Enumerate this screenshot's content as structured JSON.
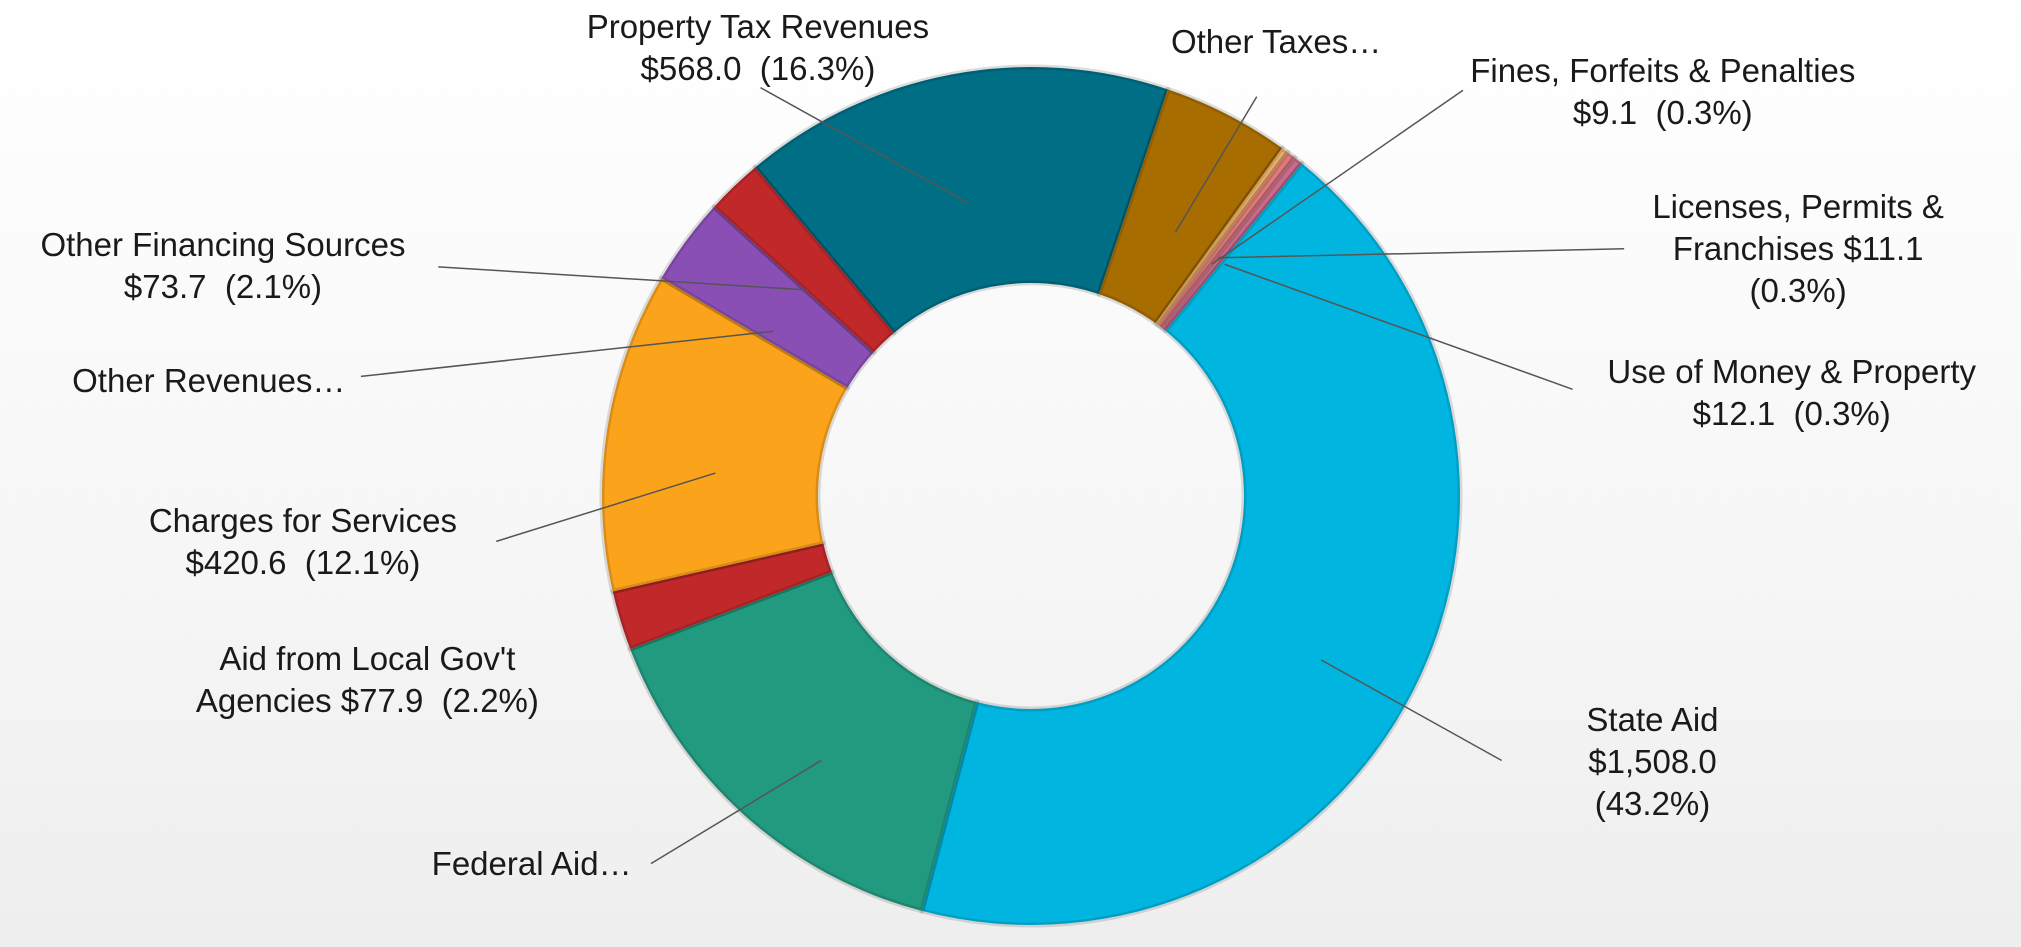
{
  "chart_data": {
    "type": "donut",
    "categories": [
      "Property Tax Revenues",
      "Other Taxes…",
      "Fines, Forfeits & Penalties",
      "Licenses, Permits & Franchises",
      "Use of Money & Property",
      "State Aid",
      "Federal Aid…",
      "Aid from Local Gov't Agencies",
      "Charges for Services",
      "Other Revenues…",
      "Other Financing Sources"
    ],
    "values": [
      568.0,
      167,
      9.1,
      11.1,
      12.1,
      1508.0,
      527,
      77.9,
      420.6,
      115,
      73.7
    ],
    "value_labels": [
      "$568.0  (16.3%)",
      null,
      "$9.1  (0.3%)",
      "$11.1  (0.3%)",
      "$12.1  (0.3%)",
      "$1,508.0  (43.2%)",
      null,
      "$77.9  (2.2%)",
      "$420.6  (12.1%)",
      null,
      "$73.7  (2.1%)"
    ],
    "colors": [
      "#006f85",
      "#a86d00",
      "#f2b16a",
      "#e07b7b",
      "#c96b8c",
      "#00b6e0",
      "#229a80",
      "#c0282a",
      "#fba31a",
      "#8a4fb5",
      "#c0282a"
    ]
  }
}
